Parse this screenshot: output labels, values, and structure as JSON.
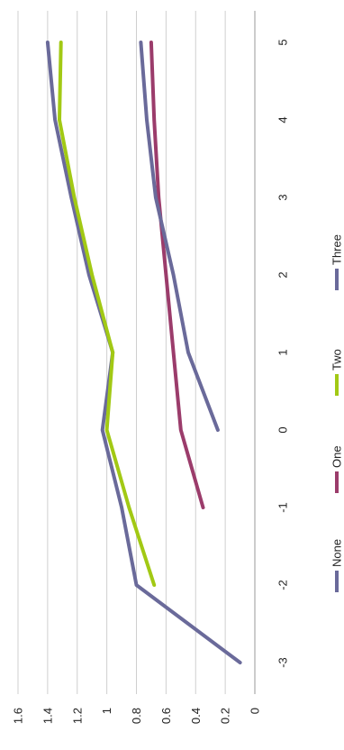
{
  "chart_data": {
    "type": "line",
    "orientation": "rotated-90-clockwise",
    "x": [
      -3,
      -2,
      -1,
      0,
      1,
      2,
      3,
      4,
      5
    ],
    "x_tick_labels": [
      "-3",
      "-2",
      "-1",
      "0",
      "1",
      "2",
      "3",
      "4",
      "5"
    ],
    "ylim": [
      0,
      1.6
    ],
    "y_ticks": [
      0,
      0.2,
      0.4,
      0.6,
      0.8,
      1,
      1.2,
      1.4,
      1.6
    ],
    "y_tick_labels": [
      "0",
      "0.2",
      "0.4",
      "0.6",
      "0.8",
      "1",
      "1.2",
      "1.4",
      "1.6"
    ],
    "grid": true,
    "legend_position": "right",
    "series": [
      {
        "name": "None",
        "color": "#6a6a9a",
        "points": [
          [
            -3,
            0.1
          ],
          [
            -2,
            0.8
          ],
          [
            -1,
            0.9
          ],
          [
            0,
            1.03
          ],
          [
            1,
            0.96
          ],
          [
            2,
            1.12
          ],
          [
            3,
            1.24
          ],
          [
            4,
            1.35
          ],
          [
            5,
            1.4
          ]
        ]
      },
      {
        "name": "One",
        "color": "#9b3c6b",
        "points": [
          [
            -1,
            0.35
          ],
          [
            0,
            0.5
          ],
          [
            1,
            0.55
          ],
          [
            2,
            0.6
          ],
          [
            3,
            0.65
          ],
          [
            4,
            0.68
          ],
          [
            5,
            0.7
          ]
        ]
      },
      {
        "name": "Two",
        "color": "#a2c914",
        "points": [
          [
            -2,
            0.68
          ],
          [
            -1,
            0.85
          ],
          [
            0,
            1.0
          ],
          [
            1,
            0.96
          ],
          [
            2,
            1.1
          ],
          [
            3,
            1.22
          ],
          [
            4,
            1.32
          ],
          [
            5,
            1.31
          ]
        ]
      },
      {
        "name": "Three",
        "color": "#6a6a9a",
        "points": [
          [
            0,
            0.25
          ],
          [
            1,
            0.45
          ],
          [
            2,
            0.55
          ],
          [
            3,
            0.67
          ],
          [
            4,
            0.73
          ],
          [
            5,
            0.77
          ]
        ]
      }
    ]
  }
}
